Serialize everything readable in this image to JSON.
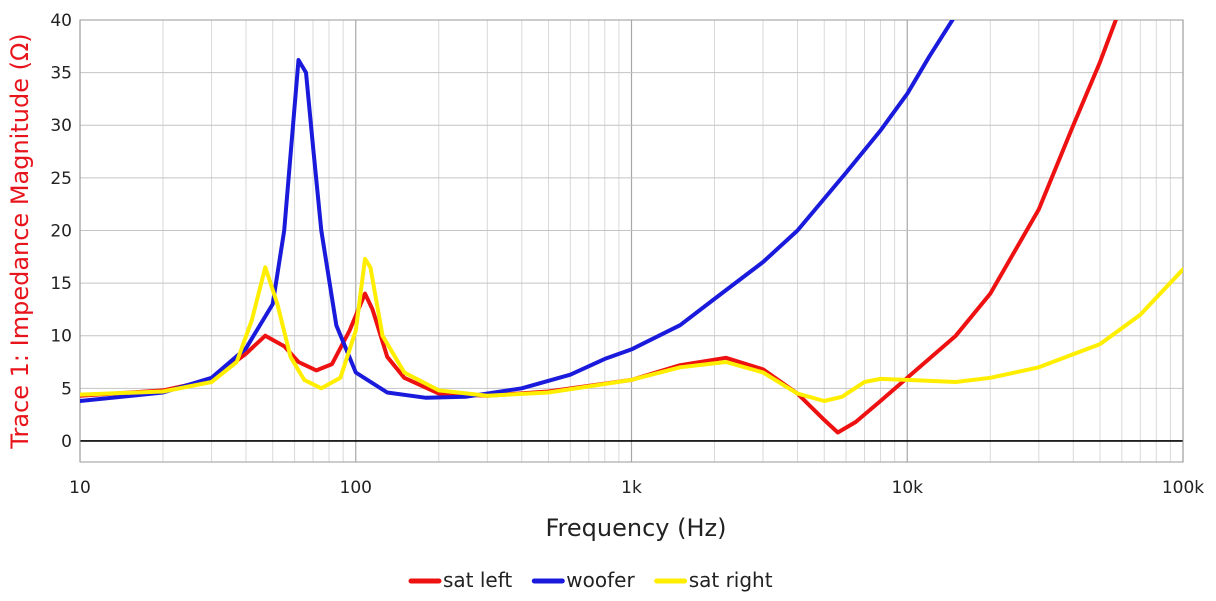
{
  "chart_data": {
    "type": "line",
    "title": "",
    "xlabel": "Frequency (Hz)",
    "ylabel": "Trace 1: Impedance Magnitude (Ω)",
    "xscale": "log",
    "xlim": [
      10,
      100000
    ],
    "ylim": [
      -2,
      40
    ],
    "x_ticks": [
      {
        "value": 10,
        "label": "10"
      },
      {
        "value": 100,
        "label": "100"
      },
      {
        "value": 1000,
        "label": "1k"
      },
      {
        "value": 10000,
        "label": "10k"
      },
      {
        "value": 100000,
        "label": "100k"
      }
    ],
    "y_ticks": [
      0,
      5,
      10,
      15,
      20,
      25,
      30,
      35,
      40
    ],
    "grid": true,
    "legend_position": "bottom-center",
    "colors": {
      "axis_label": "#e8141c",
      "zero_line": "#000000",
      "grid": "#c8c8c8"
    },
    "series": [
      {
        "name": "sat left",
        "color": "#ee1111",
        "points": [
          [
            10,
            4.3
          ],
          [
            20,
            4.8
          ],
          [
            30,
            5.8
          ],
          [
            40,
            8.3
          ],
          [
            47,
            10.0
          ],
          [
            55,
            9.0
          ],
          [
            62,
            7.5
          ],
          [
            72,
            6.7
          ],
          [
            82,
            7.3
          ],
          [
            95,
            10.5
          ],
          [
            108,
            14.0
          ],
          [
            115,
            12.5
          ],
          [
            130,
            8.0
          ],
          [
            150,
            6.0
          ],
          [
            200,
            4.5
          ],
          [
            300,
            4.3
          ],
          [
            500,
            4.7
          ],
          [
            1000,
            5.8
          ],
          [
            1500,
            7.2
          ],
          [
            2200,
            7.9
          ],
          [
            3000,
            6.8
          ],
          [
            4000,
            4.5
          ],
          [
            5000,
            2.0
          ],
          [
            5600,
            0.8
          ],
          [
            6500,
            1.8
          ],
          [
            8000,
            3.8
          ],
          [
            10000,
            6.0
          ],
          [
            15000,
            10.0
          ],
          [
            20000,
            14.0
          ],
          [
            30000,
            22.0
          ],
          [
            40000,
            30.0
          ],
          [
            50000,
            36.0
          ],
          [
            58000,
            40.5
          ]
        ]
      },
      {
        "name": "woofer",
        "color": "#1a1adc",
        "points": [
          [
            10,
            3.8
          ],
          [
            20,
            4.6
          ],
          [
            30,
            6.0
          ],
          [
            40,
            8.8
          ],
          [
            50,
            13.0
          ],
          [
            55,
            20.0
          ],
          [
            62,
            36.2
          ],
          [
            66,
            35.0
          ],
          [
            70,
            28.0
          ],
          [
            75,
            20.0
          ],
          [
            85,
            11.0
          ],
          [
            100,
            6.5
          ],
          [
            130,
            4.6
          ],
          [
            180,
            4.1
          ],
          [
            250,
            4.2
          ],
          [
            400,
            5.0
          ],
          [
            600,
            6.3
          ],
          [
            800,
            7.8
          ],
          [
            1000,
            8.7
          ],
          [
            1500,
            11.0
          ],
          [
            2000,
            13.5
          ],
          [
            3000,
            17.0
          ],
          [
            4000,
            20.0
          ],
          [
            6000,
            25.5
          ],
          [
            8000,
            29.5
          ],
          [
            10000,
            33.0
          ],
          [
            12000,
            36.5
          ],
          [
            15000,
            40.5
          ]
        ]
      },
      {
        "name": "sat right",
        "color": "#ffee00",
        "points": [
          [
            10,
            4.4
          ],
          [
            20,
            4.7
          ],
          [
            30,
            5.6
          ],
          [
            37,
            7.5
          ],
          [
            42,
            11.5
          ],
          [
            47,
            16.5
          ],
          [
            52,
            13.0
          ],
          [
            58,
            8.0
          ],
          [
            65,
            5.8
          ],
          [
            75,
            5.0
          ],
          [
            88,
            6.0
          ],
          [
            100,
            10.5
          ],
          [
            108,
            17.3
          ],
          [
            113,
            16.5
          ],
          [
            125,
            10.0
          ],
          [
            150,
            6.5
          ],
          [
            200,
            4.8
          ],
          [
            300,
            4.3
          ],
          [
            500,
            4.6
          ],
          [
            1000,
            5.8
          ],
          [
            1500,
            7.0
          ],
          [
            2200,
            7.5
          ],
          [
            3000,
            6.5
          ],
          [
            4000,
            4.5
          ],
          [
            5000,
            3.8
          ],
          [
            5800,
            4.2
          ],
          [
            7000,
            5.6
          ],
          [
            8000,
            5.9
          ],
          [
            10000,
            5.8
          ],
          [
            15000,
            5.6
          ],
          [
            20000,
            6.0
          ],
          [
            30000,
            7.0
          ],
          [
            50000,
            9.2
          ],
          [
            70000,
            12.0
          ],
          [
            100000,
            16.3
          ]
        ]
      }
    ]
  }
}
